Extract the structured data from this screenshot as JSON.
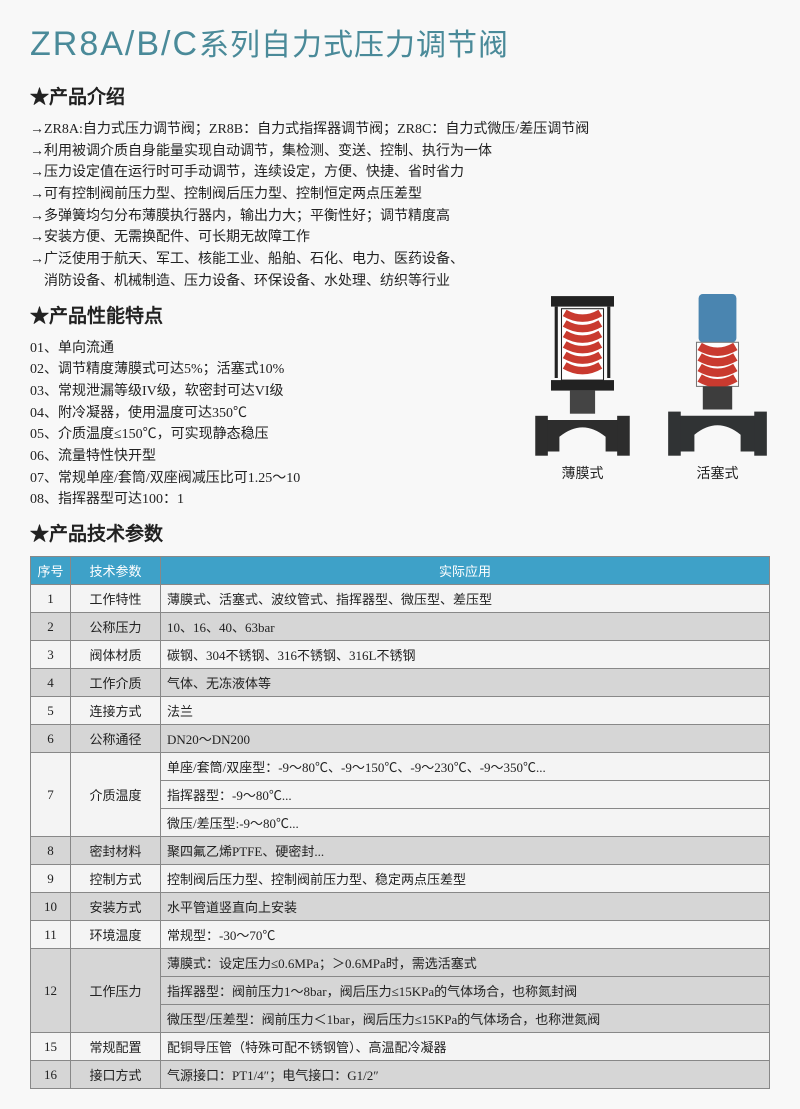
{
  "title_en": "ZR8A/B/C",
  "title_cn": "系列自力式压力调节阀",
  "sections": {
    "intro": "★产品介绍",
    "perf": "★产品性能特点",
    "spec": "★产品技术参数"
  },
  "intro_lines": [
    "ZR8A:自力式压力调节阀；ZR8B：自力式指挥器调节阀；ZR8C：自力式微压/差压调节阀",
    "利用被调介质自身能量实现自动调节，集检测、变送、控制、执行为一体",
    "压力设定值在运行时可手动调节，连续设定，方便、快捷、省时省力",
    "可有控制阀前压力型、控制阀后压力型、控制恒定两点压差型",
    "多弹簧均匀分布薄膜执行器内，输出力大；平衡性好；调节精度高",
    "安装方便、无需换配件、可长期无故障工作",
    "广泛使用于航天、军工、核能工业、船舶、石化、电力、医药设备、"
  ],
  "intro_cont": "消防设备、机械制造、压力设备、环保设备、水处理、纺织等行业",
  "features": [
    "01、单向流通",
    "02、调节精度薄膜式可达5%；活塞式10%",
    "03、常规泄漏等级IV级，软密封可达VI级",
    "04、附冷凝器，使用温度可达350℃",
    "05、介质温度≤150℃，可实现静态稳压",
    "06、流量特性快开型",
    "07、常规单座/套筒/双座阀减压比可1.25～10",
    "08、指挥器型可达100：1"
  ],
  "image_labels": {
    "left": "薄膜式",
    "right": "活塞式"
  },
  "table": {
    "headers": [
      "序号",
      "技术参数",
      "实际应用"
    ],
    "rows": [
      {
        "seq": "1",
        "param": "工作特性",
        "apps": [
          "薄膜式、活塞式、波纹管式、指挥器型、微压型、差压型"
        ],
        "alt": false
      },
      {
        "seq": "2",
        "param": "公称压力",
        "apps": [
          "10、16、40、63bar"
        ],
        "alt": true
      },
      {
        "seq": "3",
        "param": "阀体材质",
        "apps": [
          "碳钢、304不锈钢、316不锈钢、316L不锈钢"
        ],
        "alt": false
      },
      {
        "seq": "4",
        "param": "工作介质",
        "apps": [
          "气体、无冻液体等"
        ],
        "alt": true
      },
      {
        "seq": "5",
        "param": "连接方式",
        "apps": [
          "法兰"
        ],
        "alt": false
      },
      {
        "seq": "6",
        "param": "公称通径",
        "apps": [
          "DN20～DN200"
        ],
        "alt": true
      },
      {
        "seq": "7",
        "param": "介质温度",
        "apps": [
          "单座/套筒/双座型：-9～80℃、-9～150℃、-9～230℃、-9～350℃...",
          "指挥器型：-9～80℃...",
          "微压/差压型:-9～80℃..."
        ],
        "alt": false
      },
      {
        "seq": "8",
        "param": "密封材料",
        "apps": [
          "聚四氟乙烯PTFE、硬密封..."
        ],
        "alt": true
      },
      {
        "seq": "9",
        "param": "控制方式",
        "apps": [
          "控制阀后压力型、控制阀前压力型、稳定两点压差型"
        ],
        "alt": false
      },
      {
        "seq": "10",
        "param": "安装方式",
        "apps": [
          "水平管道竖直向上安装"
        ],
        "alt": true
      },
      {
        "seq": "11",
        "param": "环境温度",
        "apps": [
          "常规型：-30～70℃"
        ],
        "alt": false
      },
      {
        "seq": "12",
        "param": "工作压力",
        "apps": [
          "薄膜式：设定压力≤0.6MPa；＞0.6MPa时，需选活塞式",
          "指挥器型：阀前压力1～8bar，阀后压力≤15KPa的气体场合，也称氮封阀",
          "微压型/压差型：阀前压力＜1bar，阀后压力≤15KPa的气体场合，也称泄氮阀"
        ],
        "alt": true
      },
      {
        "seq": "15",
        "param": "常规配置",
        "apps": [
          "配铜导压管（特殊可配不锈钢管）、高温配冷凝器"
        ],
        "alt": false
      },
      {
        "seq": "16",
        "param": "接口方式",
        "apps": [
          "气源接口：PT1/4″；电气接口：G1/2″"
        ],
        "alt": true
      }
    ]
  },
  "colors": {
    "title": "#4a8a99",
    "header_bg": "#3ea1c8",
    "row_alt": "#d6d6d6",
    "spring": "#c93a2f",
    "body": "#333333",
    "piston_top": "#4a85b0"
  }
}
